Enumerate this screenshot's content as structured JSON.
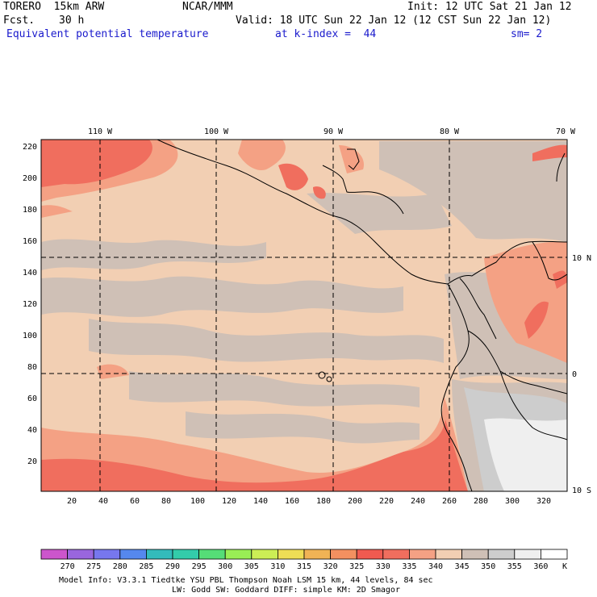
{
  "header": {
    "model": "TORERO  15km ARW",
    "fcst_label": "Fcst.",
    "fcst_value": "30 h",
    "org": "NCAR/MMM",
    "init": "Init: 12 UTC Sat 21 Jan 12",
    "valid": "Valid: 18 UTC Sun 22 Jan 12 (12 CST Sun 22 Jan 12)",
    "field": "Equivalent potential temperature",
    "level": "at k-index =  44",
    "smoothing": "sm= 2"
  },
  "map": {
    "top_lon_labels": [
      "110 W",
      "100 W",
      "90 W",
      "80 W",
      "70 W"
    ],
    "right_lat_labels": [
      "10 N",
      "0",
      "10 S"
    ],
    "left_ticks": [
      "220",
      "200",
      "180",
      "160",
      "140",
      "120",
      "100",
      "80",
      "60",
      "40",
      "20"
    ],
    "bottom_ticks": [
      "20",
      "40",
      "60",
      "80",
      "100",
      "120",
      "140",
      "160",
      "180",
      "200",
      "220",
      "240",
      "260",
      "280",
      "300",
      "320"
    ]
  },
  "colorbar": {
    "unit": "K",
    "levels": [
      "270",
      "275",
      "280",
      "285",
      "290",
      "295",
      "300",
      "305",
      "310",
      "315",
      "320",
      "325",
      "330",
      "335",
      "340",
      "345",
      "350",
      "355",
      "360"
    ],
    "colors": [
      "#cc55cc",
      "#9966dd",
      "#7777ee",
      "#5588ee",
      "#33bbbb",
      "#33ccaa",
      "#55dd77",
      "#99ee55",
      "#ccee55",
      "#eedd55",
      "#f0b355",
      "#f39060",
      "#f05a50",
      "#f06e5e",
      "#f4a184",
      "#f2cfb3",
      "#cfc0b6",
      "#cdcdcd",
      "#efefef",
      "#ffffff"
    ]
  },
  "footer": {
    "line1": "Model Info: V3.3.1    Tiedtke YSU PBL  Thompson     Noah LSM  15 km,   44 levels,   84 sec",
    "line2": "LW: Godd SW: Goddard DIFF: simple KM: 2D Smagor"
  }
}
